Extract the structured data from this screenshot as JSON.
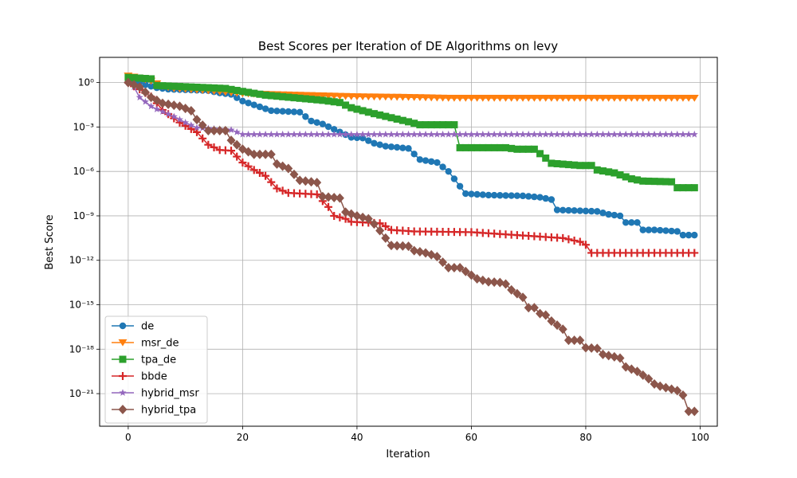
{
  "chart_data": {
    "type": "line",
    "title": "Best Scores per Iteration of DE Algorithms on levy",
    "xlabel": "Iteration",
    "ylabel": "Best Score",
    "x_scale": "linear",
    "y_scale": "log",
    "xlim": [
      -5,
      103
    ],
    "ylim_log10": [
      -23.2,
      1.7
    ],
    "x_ticks": [
      0,
      20,
      40,
      60,
      80,
      100
    ],
    "x_tick_labels": [
      "0",
      "20",
      "40",
      "60",
      "80",
      "100"
    ],
    "y_ticks_log10": [
      0,
      -3,
      -6,
      -9,
      -12,
      -15,
      -18,
      -21
    ],
    "y_tick_labels": [
      "10⁰",
      "10⁻³",
      "10⁻⁶",
      "10⁻⁹",
      "10⁻¹²",
      "10⁻¹⁵",
      "10⁻¹⁸",
      "10⁻²¹"
    ],
    "grid": true,
    "legend_position": "lower-left",
    "x": "iterations 0..99 (100 points per series)",
    "series": [
      {
        "name": "de",
        "color": "#1f77b4",
        "marker": "circle",
        "breakpoints_log10": [
          [
            0,
            0.15
          ],
          [
            2,
            0.05
          ],
          [
            3,
            -0.15
          ],
          [
            5,
            -0.35
          ],
          [
            7,
            -0.45
          ],
          [
            14,
            -0.55
          ],
          [
            16,
            -0.7
          ],
          [
            18,
            -0.8
          ],
          [
            20,
            -1.25
          ],
          [
            25,
            -1.9
          ],
          [
            30,
            -2.0
          ],
          [
            32,
            -2.6
          ],
          [
            34,
            -2.8
          ],
          [
            39,
            -3.7
          ],
          [
            41,
            -3.75
          ],
          [
            43,
            -4.1
          ],
          [
            45,
            -4.3
          ],
          [
            49,
            -4.45
          ],
          [
            51,
            -5.2
          ],
          [
            54,
            -5.4
          ],
          [
            56,
            -6.0
          ],
          [
            59,
            -7.5
          ],
          [
            63,
            -7.6
          ],
          [
            69,
            -7.65
          ],
          [
            72,
            -7.75
          ],
          [
            74,
            -7.9
          ],
          [
            75,
            -8.6
          ],
          [
            82,
            -8.7
          ],
          [
            84,
            -8.9
          ],
          [
            86,
            -9.0
          ],
          [
            87,
            -9.45
          ],
          [
            89,
            -9.45
          ],
          [
            90,
            -9.95
          ],
          [
            92,
            -9.95
          ],
          [
            96,
            -10.05
          ],
          [
            97,
            -10.3
          ],
          [
            99,
            -10.3
          ]
        ]
      },
      {
        "name": "msr_de",
        "color": "#ff7f0e",
        "marker": "triangle-down",
        "breakpoints_log10": [
          [
            0,
            0.45
          ],
          [
            2,
            0.3
          ],
          [
            4,
            0.1
          ],
          [
            6,
            -0.25
          ],
          [
            8,
            -0.4
          ],
          [
            14,
            -0.55
          ],
          [
            20,
            -0.75
          ],
          [
            30,
            -0.85
          ],
          [
            40,
            -0.95
          ],
          [
            50,
            -1.0
          ],
          [
            56,
            -1.05
          ],
          [
            99,
            -1.05
          ]
        ]
      },
      {
        "name": "tpa_de",
        "color": "#2ca02c",
        "marker": "square",
        "breakpoints_log10": [
          [
            0,
            0.35
          ],
          [
            4,
            0.25
          ],
          [
            5,
            -0.2
          ],
          [
            17,
            -0.4
          ],
          [
            20,
            -0.6
          ],
          [
            24,
            -0.85
          ],
          [
            34,
            -1.2
          ],
          [
            37,
            -1.35
          ],
          [
            39,
            -1.7
          ],
          [
            43,
            -2.1
          ],
          [
            49,
            -2.65
          ],
          [
            51,
            -2.85
          ],
          [
            57,
            -2.85
          ],
          [
            58,
            -4.4
          ],
          [
            66,
            -4.4
          ],
          [
            68,
            -4.5
          ],
          [
            71,
            -4.5
          ],
          [
            73,
            -5.1
          ],
          [
            74,
            -5.45
          ],
          [
            79,
            -5.6
          ],
          [
            81,
            -5.6
          ],
          [
            82,
            -5.9
          ],
          [
            85,
            -6.1
          ],
          [
            88,
            -6.5
          ],
          [
            90,
            -6.65
          ],
          [
            95,
            -6.7
          ],
          [
            96,
            -7.1
          ],
          [
            99,
            -7.1
          ]
        ]
      },
      {
        "name": "bbde",
        "color": "#d62728",
        "marker": "plus",
        "breakpoints_log10": [
          [
            0,
            0.0
          ],
          [
            1,
            -0.25
          ],
          [
            2,
            -0.45
          ],
          [
            4,
            -0.95
          ],
          [
            6,
            -1.85
          ],
          [
            9,
            -2.7
          ],
          [
            12,
            -3.35
          ],
          [
            14,
            -4.2
          ],
          [
            16,
            -4.55
          ],
          [
            18,
            -4.6
          ],
          [
            20,
            -5.4
          ],
          [
            22,
            -5.9
          ],
          [
            24,
            -6.3
          ],
          [
            26,
            -7.15
          ],
          [
            28,
            -7.45
          ],
          [
            33,
            -7.55
          ],
          [
            34,
            -8.0
          ],
          [
            35,
            -8.4
          ],
          [
            36,
            -9.0
          ],
          [
            38,
            -9.2
          ],
          [
            39,
            -9.4
          ],
          [
            44,
            -9.5
          ],
          [
            45,
            -9.7
          ],
          [
            46,
            -9.95
          ],
          [
            50,
            -10.05
          ],
          [
            60,
            -10.1
          ],
          [
            70,
            -10.35
          ],
          [
            76,
            -10.5
          ],
          [
            79,
            -10.75
          ],
          [
            80,
            -10.95
          ],
          [
            81,
            -11.5
          ],
          [
            99,
            -11.5
          ]
        ]
      },
      {
        "name": "hybrid_msr",
        "color": "#9467bd",
        "marker": "star",
        "breakpoints_log10": [
          [
            0,
            0.0
          ],
          [
            1,
            -0.3
          ],
          [
            2,
            -1.0
          ],
          [
            4,
            -1.6
          ],
          [
            5,
            -1.8
          ],
          [
            8,
            -2.3
          ],
          [
            10,
            -2.7
          ],
          [
            12,
            -3.05
          ],
          [
            18,
            -3.2
          ],
          [
            20,
            -3.5
          ],
          [
            99,
            -3.5
          ]
        ]
      },
      {
        "name": "hybrid_tpa",
        "color": "#8c564b",
        "marker": "diamond",
        "breakpoints_log10": [
          [
            0,
            0.0
          ],
          [
            2,
            -0.3
          ],
          [
            4,
            -1.0
          ],
          [
            6,
            -1.4
          ],
          [
            9,
            -1.6
          ],
          [
            11,
            -1.9
          ],
          [
            12,
            -2.5
          ],
          [
            14,
            -3.25
          ],
          [
            17,
            -3.25
          ],
          [
            18,
            -3.9
          ],
          [
            20,
            -4.5
          ],
          [
            22,
            -4.85
          ],
          [
            25,
            -4.85
          ],
          [
            26,
            -5.5
          ],
          [
            28,
            -5.8
          ],
          [
            30,
            -6.6
          ],
          [
            33,
            -6.75
          ],
          [
            34,
            -7.7
          ],
          [
            37,
            -7.8
          ],
          [
            38,
            -8.75
          ],
          [
            40,
            -9.0
          ],
          [
            42,
            -9.2
          ],
          [
            43,
            -9.55
          ],
          [
            44,
            -10.0
          ],
          [
            46,
            -11.0
          ],
          [
            49,
            -11.05
          ],
          [
            50,
            -11.35
          ],
          [
            52,
            -11.5
          ],
          [
            54,
            -11.75
          ],
          [
            56,
            -12.5
          ],
          [
            58,
            -12.5
          ],
          [
            59,
            -12.75
          ],
          [
            61,
            -13.25
          ],
          [
            63,
            -13.45
          ],
          [
            65,
            -13.5
          ],
          [
            66,
            -13.6
          ],
          [
            67,
            -14.0
          ],
          [
            69,
            -14.5
          ],
          [
            70,
            -15.2
          ],
          [
            71,
            -15.2
          ],
          [
            72,
            -15.6
          ],
          [
            73,
            -15.7
          ],
          [
            74,
            -16.1
          ],
          [
            76,
            -16.65
          ],
          [
            77,
            -17.4
          ],
          [
            79,
            -17.4
          ],
          [
            80,
            -17.9
          ],
          [
            82,
            -17.95
          ],
          [
            83,
            -18.35
          ],
          [
            86,
            -18.6
          ],
          [
            87,
            -19.2
          ],
          [
            89,
            -19.5
          ],
          [
            91,
            -20.0
          ],
          [
            92,
            -20.35
          ],
          [
            93,
            -20.5
          ],
          [
            95,
            -20.7
          ],
          [
            96,
            -20.8
          ],
          [
            97,
            -21.1
          ],
          [
            98,
            -22.2
          ],
          [
            99,
            -22.2
          ]
        ]
      }
    ]
  }
}
